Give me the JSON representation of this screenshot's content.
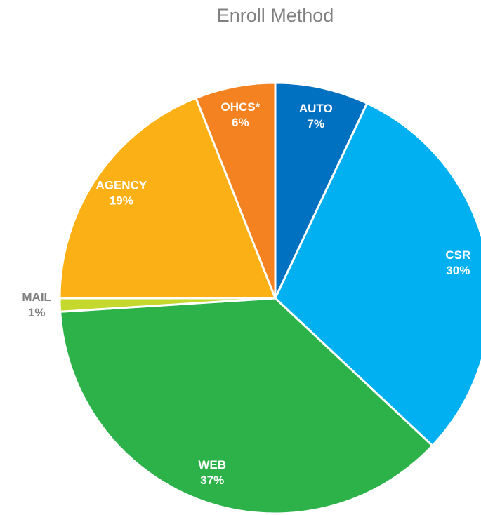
{
  "chart_data": {
    "type": "pie",
    "title": "Enroll Method",
    "categories": [
      "AUTO",
      "CSR",
      "WEB",
      "MAIL",
      "AGENCY",
      "OHCS*"
    ],
    "values": [
      7,
      30,
      37,
      1,
      19,
      6
    ],
    "value_labels": [
      "7%",
      "30%",
      "37%",
      "1%",
      "19%",
      "6%"
    ],
    "colors": [
      "#0070c0",
      "#00b0f0",
      "#2db24a",
      "#c4d82e",
      "#fbb116",
      "#f58220"
    ]
  }
}
